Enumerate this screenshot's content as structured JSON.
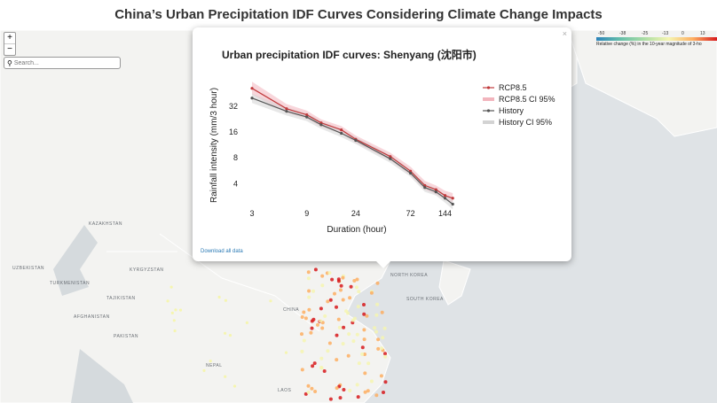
{
  "page_title": "China’s Urban Precipitation IDF Curves Considering Climate Change Impacts",
  "zoom": {
    "in": "+",
    "out": "−"
  },
  "search": {
    "placeholder": "Search...",
    "icon": "search-icon"
  },
  "legend": {
    "ticks": [
      "-50",
      "-38",
      "-25",
      "-13",
      "0",
      "13"
    ],
    "caption": "Relative change (%) in the 10-year magnitude of 3-ho",
    "colors": [
      "#2b83ba",
      "#66bfa9",
      "#abdda4",
      "#f5f5b0",
      "#fdae61",
      "#d7191c"
    ]
  },
  "map_labels": {
    "kazakhstan": "KAZAKHSTAN",
    "uzbekistan": "UZBEKISTAN",
    "kyrgyzstan": "KYRGYZSTAN",
    "turkmenistan": "TURKMENISTAN",
    "tajikistan": "TAJIKISTAN",
    "afghanistan": "AFGHANISTAN",
    "pakistan": "PAKISTAN",
    "nepal": "NEPAL",
    "china": "CHINA",
    "north_korea": "NORTH KOREA",
    "south_korea": "SOUTH KOREA",
    "laos": "LAOS"
  },
  "popup": {
    "close": "×",
    "download": "Download all data"
  },
  "chart_data": {
    "type": "line",
    "title": "Urban precipitation IDF curves: Shenyang (沈阳市)",
    "xlabel": "Duration (hour)",
    "ylabel": "Rainfall intensity (mm/3 hour)",
    "x_scale": "log",
    "y_scale": "log",
    "xticks": [
      3,
      9,
      24,
      72,
      144
    ],
    "yticks": [
      4,
      8,
      16,
      32
    ],
    "xlim": [
      3,
      200
    ],
    "ylim": [
      2.5,
      64
    ],
    "x": [
      3,
      6,
      9,
      12,
      18,
      24,
      48,
      72,
      96,
      120,
      144,
      168
    ],
    "series": [
      {
        "name": "RCP8.5",
        "color": "#c0393b",
        "values": [
          52,
          30,
          25.5,
          20.5,
          17,
          13.2,
          8.3,
          5.6,
          3.8,
          3.4,
          2.9,
          2.7
        ]
      },
      {
        "name": "History",
        "color": "#555555",
        "values": [
          40,
          28,
          24,
          19.5,
          15.5,
          12.8,
          7.8,
          5.3,
          3.6,
          3.2,
          2.7,
          2.3
        ]
      }
    ],
    "bands": [
      {
        "name": "RCP8.5 CI 95%",
        "color": "#f2b5bd",
        "lower": [
          44,
          27,
          23,
          18.5,
          15.5,
          12,
          7.5,
          5.0,
          3.4,
          3.0,
          2.6,
          2.4
        ],
        "upper": [
          62,
          34,
          28.5,
          22.5,
          18.8,
          14.6,
          9.2,
          6.3,
          4.3,
          3.8,
          3.3,
          3.1
        ]
      },
      {
        "name": "History CI 95%",
        "color": "#d3d3d3",
        "lower": [
          35,
          25,
          21.5,
          17.5,
          14,
          11.6,
          7.0,
          4.8,
          3.2,
          2.9,
          2.4,
          2.0
        ],
        "upper": [
          45,
          31,
          26.5,
          21.5,
          17,
          14,
          8.6,
          5.8,
          4.0,
          3.5,
          3.0,
          2.6
        ]
      }
    ],
    "legend_position": "right",
    "grid": false
  }
}
